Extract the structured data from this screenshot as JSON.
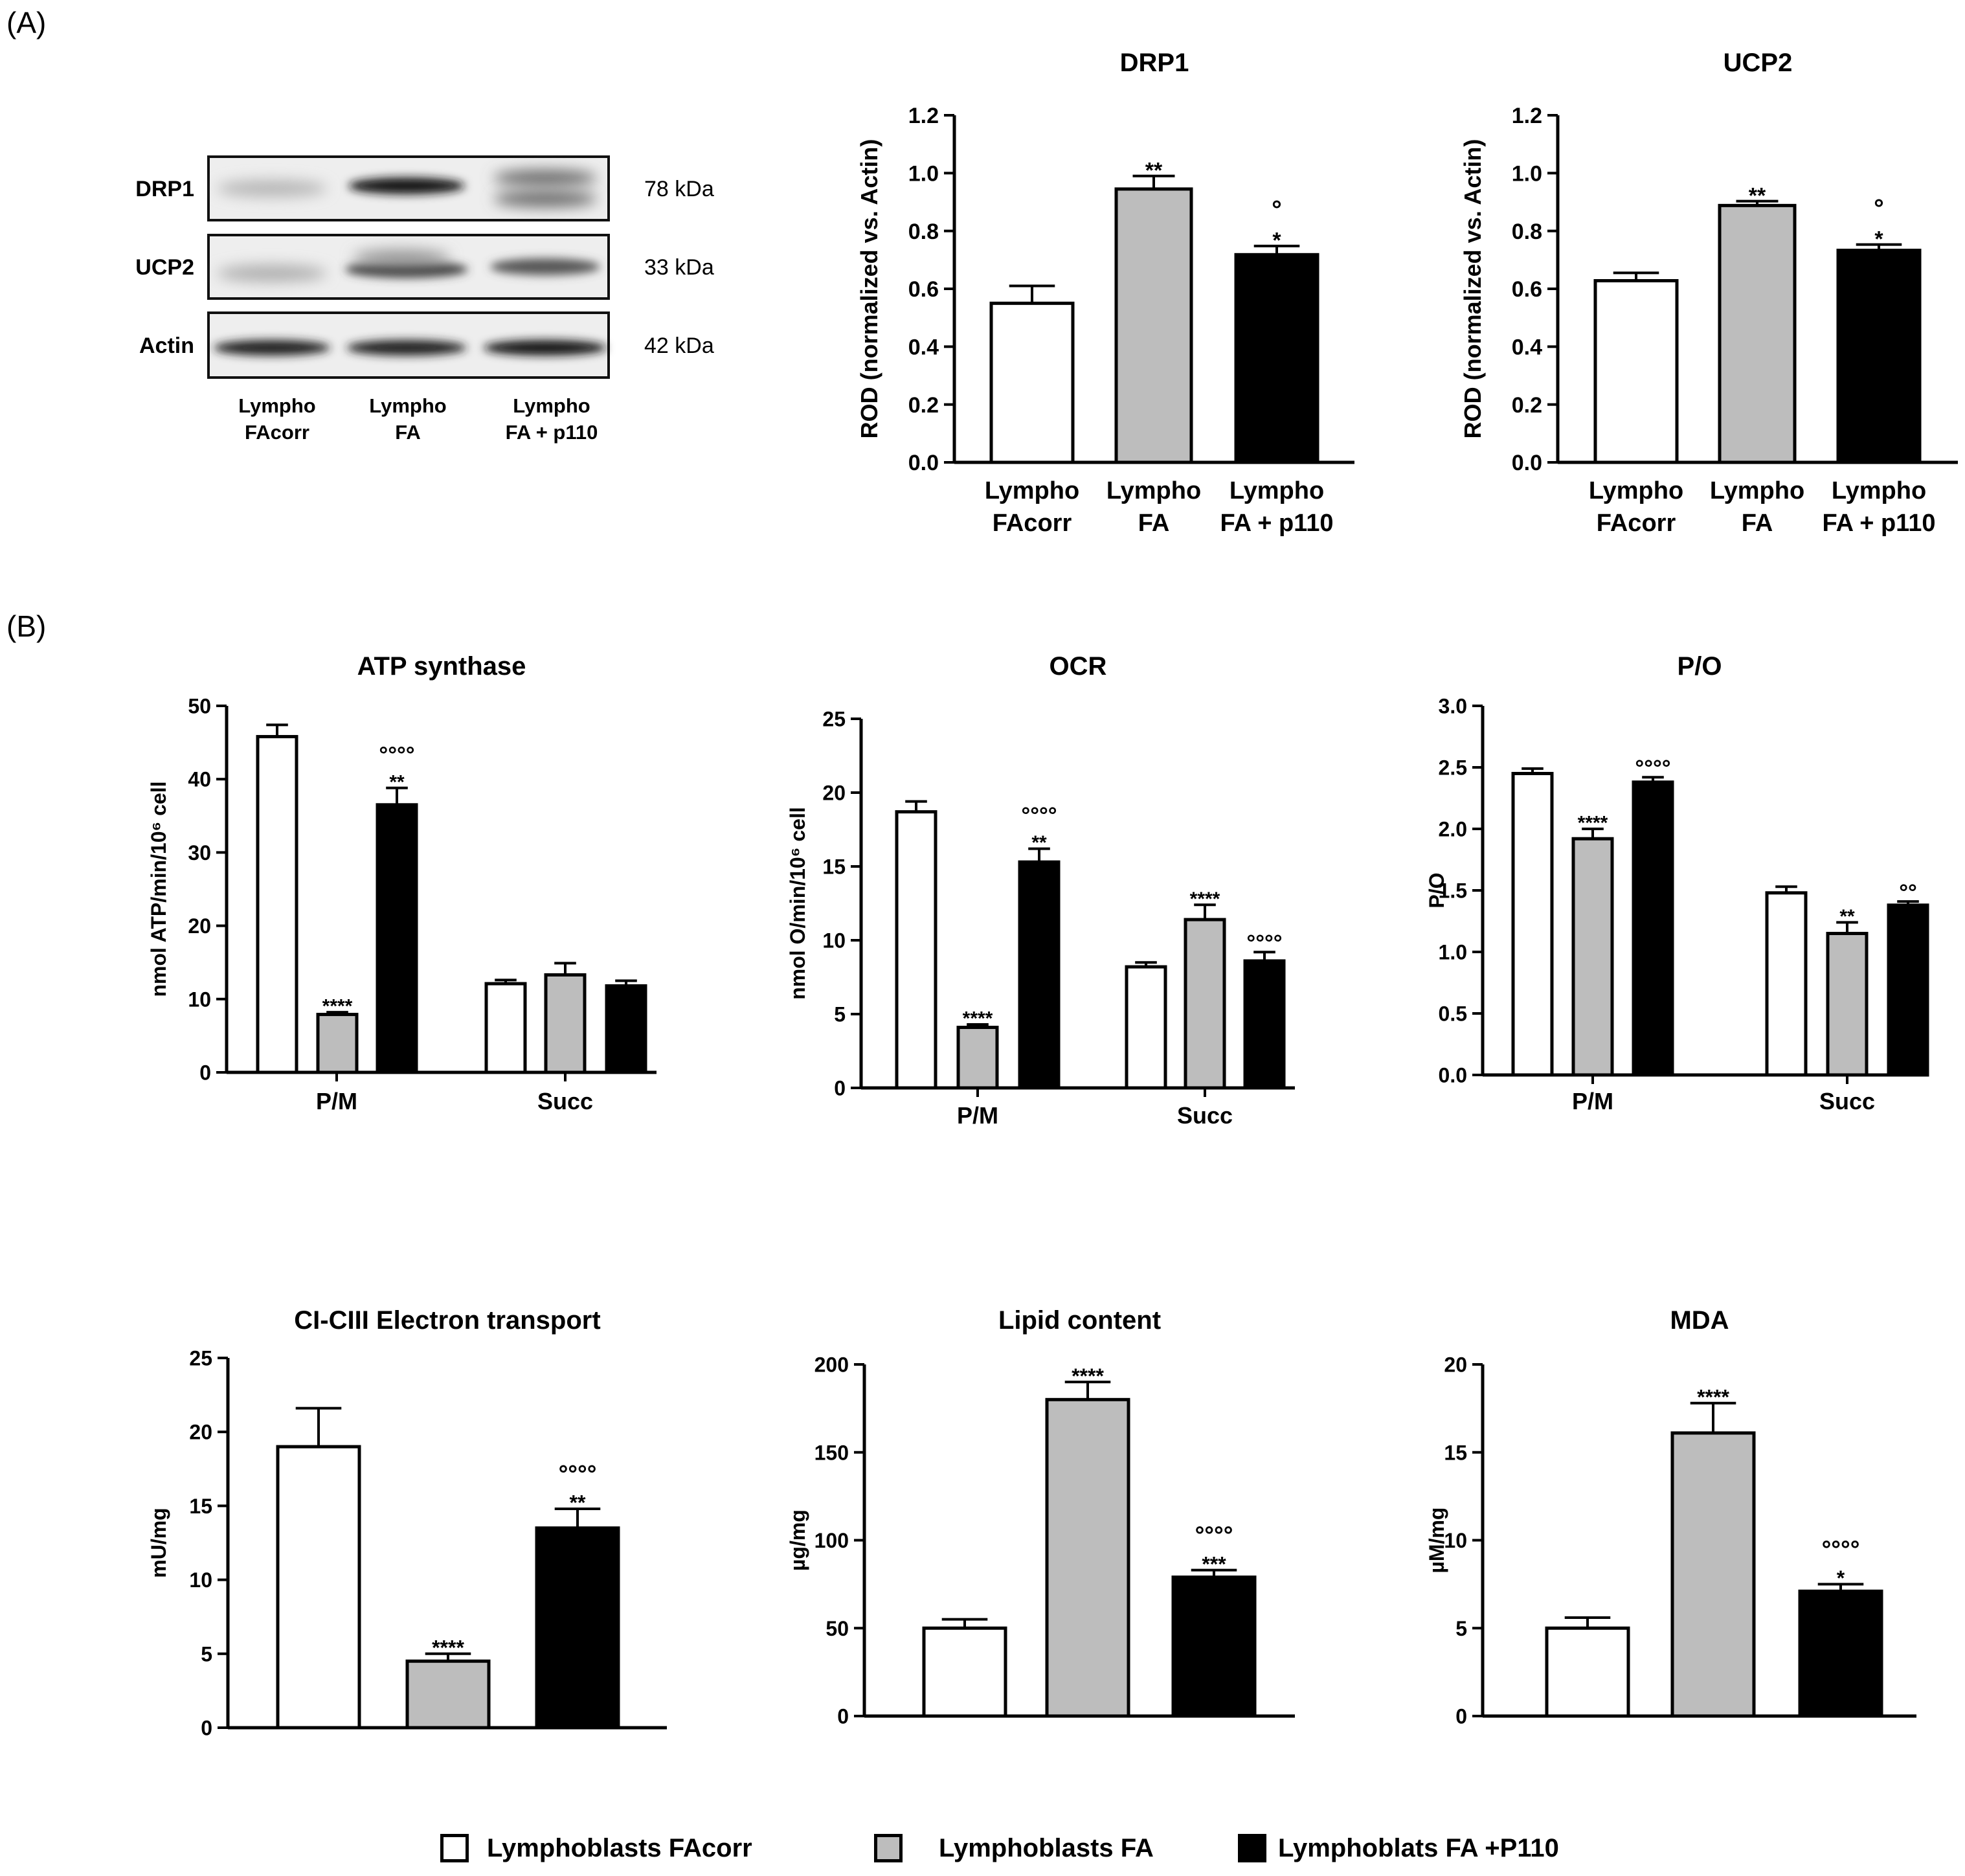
{
  "panel_labels": {
    "a": "(A)",
    "b": "(B)"
  },
  "colors": {
    "facorr": "#ffffff",
    "fa": "#bdbdbd",
    "p110": "#000000",
    "axis": "#000000"
  },
  "western_blot": {
    "rows": [
      {
        "label": "DRP1",
        "kda": "78 kDa"
      },
      {
        "label": "UCP2",
        "kda": "33 kDa"
      },
      {
        "label": "Actin",
        "kda": "42 kDa"
      }
    ],
    "lanes": [
      {
        "line1": "Lympho",
        "line2": "FAcorr"
      },
      {
        "line1": "Lympho",
        "line2": "FA"
      },
      {
        "line1": "Lympho",
        "line2": "FA + p110"
      }
    ]
  },
  "legend": [
    {
      "label": "Lymphoblasts FAcorr",
      "color": "#ffffff"
    },
    {
      "label": "Lymphoblasts FA",
      "color": "#bdbdbd"
    },
    {
      "label": "Lymphoblats FA +P110",
      "color": "#000000"
    }
  ],
  "chart_data": [
    {
      "id": "drp1",
      "type": "bar",
      "title": "DRP1",
      "ylabel": "ROD (normalized vs. Actin)",
      "ylim": [
        0,
        1.2
      ],
      "yticks": [
        "0.0",
        "0.2",
        "0.4",
        "0.6",
        "0.8",
        "1.0",
        "1.2"
      ],
      "categories": [
        [
          "Lympho",
          "FAcorr"
        ],
        [
          "Lympho",
          "FA"
        ],
        [
          "Lympho",
          "FA + p110"
        ]
      ],
      "values": [
        0.55,
        0.945,
        0.718
      ],
      "errors": [
        0.06,
        0.045,
        0.03
      ],
      "annotations": [
        [],
        [
          "**"
        ],
        [
          "°",
          "*"
        ]
      ]
    },
    {
      "id": "ucp2",
      "type": "bar",
      "title": "UCP2",
      "ylabel": "ROD (normalized vs. Actin)",
      "ylim": [
        0,
        1.2
      ],
      "yticks": [
        "0.0",
        "0.2",
        "0.4",
        "0.6",
        "0.8",
        "1.0",
        "1.2"
      ],
      "categories": [
        [
          "Lympho",
          "FAcorr"
        ],
        [
          "Lympho",
          "FA"
        ],
        [
          "Lympho",
          "FA + p110"
        ]
      ],
      "values": [
        0.628,
        0.888,
        0.733
      ],
      "errors": [
        0.027,
        0.015,
        0.02
      ],
      "annotations": [
        [],
        [
          "**"
        ],
        [
          "°",
          "*"
        ]
      ]
    },
    {
      "id": "atp",
      "type": "bar",
      "title": "ATP synthase",
      "ylabel": "nmol ATP/min/10⁶ cell",
      "ylim": [
        0,
        50
      ],
      "yticks": [
        "0",
        "10",
        "20",
        "30",
        "40",
        "50"
      ],
      "groups": [
        "P/M",
        "Succ"
      ],
      "series": [
        {
          "name": "Lymphoblasts FAcorr",
          "values": [
            45.8,
            12.1
          ],
          "errors": [
            1.6,
            0.5
          ],
          "annotations": [
            [],
            []
          ]
        },
        {
          "name": "Lymphoblasts FA",
          "values": [
            7.9,
            13.3
          ],
          "errors": [
            0.3,
            1.6
          ],
          "annotations": [
            [
              "****"
            ],
            []
          ]
        },
        {
          "name": "Lymphoblats FA +P110",
          "values": [
            36.5,
            11.8
          ],
          "errors": [
            2.3,
            0.7
          ],
          "annotations": [
            [
              "°°°°",
              "**"
            ],
            []
          ]
        }
      ]
    },
    {
      "id": "ocr",
      "type": "bar",
      "title": "OCR",
      "ylabel": "nmol O/min/10⁶ cell",
      "ylim": [
        0,
        25
      ],
      "yticks": [
        "0",
        "5",
        "10",
        "15",
        "20",
        "25"
      ],
      "groups": [
        "P/M",
        "Succ"
      ],
      "series": [
        {
          "name": "Lymphoblasts FAcorr",
          "values": [
            18.7,
            8.2
          ],
          "errors": [
            0.7,
            0.3
          ],
          "annotations": [
            [],
            []
          ]
        },
        {
          "name": "Lymphoblasts FA",
          "values": [
            4.1,
            11.4
          ],
          "errors": [
            0.2,
            1.0
          ],
          "annotations": [
            [
              "****"
            ],
            [
              "****"
            ]
          ]
        },
        {
          "name": "Lymphoblats FA +P110",
          "values": [
            15.3,
            8.6
          ],
          "errors": [
            0.9,
            0.6
          ],
          "annotations": [
            [
              "°°°°",
              "**"
            ],
            [
              "°°°°"
            ]
          ]
        }
      ]
    },
    {
      "id": "po",
      "type": "bar",
      "title": "P/O",
      "ylabel": "P/O",
      "ylim": [
        0,
        3.0
      ],
      "yticks": [
        "0.0",
        "0.5",
        "1.0",
        "1.5",
        "2.0",
        "2.5",
        "3.0"
      ],
      "groups": [
        "P/M",
        "Succ"
      ],
      "series": [
        {
          "name": "Lymphoblasts FAcorr",
          "values": [
            2.45,
            1.48
          ],
          "errors": [
            0.04,
            0.05
          ],
          "annotations": [
            [],
            []
          ]
        },
        {
          "name": "Lymphoblasts FA",
          "values": [
            1.92,
            1.15
          ],
          "errors": [
            0.08,
            0.09
          ],
          "annotations": [
            [
              "****"
            ],
            [
              "**"
            ]
          ]
        },
        {
          "name": "Lymphoblats FA +P110",
          "values": [
            2.38,
            1.38
          ],
          "errors": [
            0.04,
            0.03
          ],
          "annotations": [
            [
              "°°°°"
            ],
            [
              "°°"
            ]
          ]
        }
      ]
    },
    {
      "id": "ci",
      "type": "bar",
      "title": "CI-CIII Electron transport",
      "ylabel": "mU/mg",
      "ylim": [
        0,
        25
      ],
      "yticks": [
        "0",
        "5",
        "10",
        "15",
        "20",
        "25"
      ],
      "categories": [
        [
          ""
        ],
        [
          ""
        ],
        [
          ""
        ]
      ],
      "values": [
        19.0,
        4.5,
        13.5
      ],
      "errors": [
        2.6,
        0.5,
        1.3
      ],
      "annotations": [
        [],
        [
          "****"
        ],
        [
          "°°°°",
          "**"
        ]
      ]
    },
    {
      "id": "lipid",
      "type": "bar",
      "title": "Lipid content",
      "ylabel": "µg/mg",
      "ylim": [
        0,
        200
      ],
      "yticks": [
        "0",
        "50",
        "100",
        "150",
        "200"
      ],
      "categories": [
        [
          ""
        ],
        [
          ""
        ],
        [
          ""
        ]
      ],
      "values": [
        50,
        180,
        79
      ],
      "errors": [
        5,
        10,
        4
      ],
      "annotations": [
        [],
        [
          "****"
        ],
        [
          "°°°°",
          "***"
        ]
      ]
    },
    {
      "id": "mda",
      "type": "bar",
      "title": "MDA",
      "ylabel": "µM/mg",
      "ylim": [
        0,
        20
      ],
      "yticks": [
        "0",
        "5",
        "10",
        "15",
        "20"
      ],
      "categories": [
        [
          ""
        ],
        [
          ""
        ],
        [
          ""
        ]
      ],
      "values": [
        5.0,
        16.1,
        7.1
      ],
      "errors": [
        0.6,
        1.7,
        0.4
      ],
      "annotations": [
        [],
        [
          "****"
        ],
        [
          "°°°°",
          "*"
        ]
      ]
    }
  ]
}
